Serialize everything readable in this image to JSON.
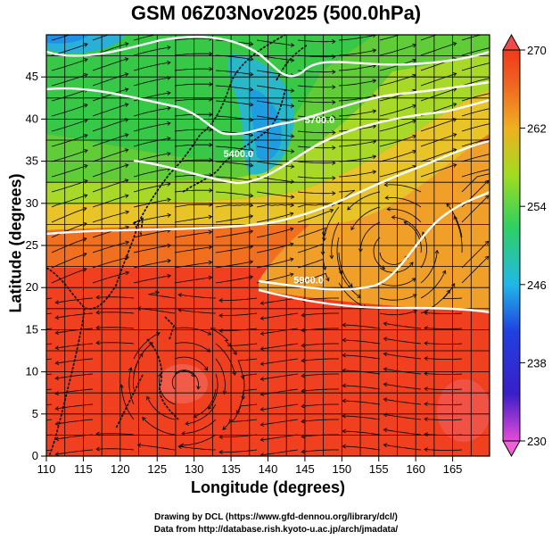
{
  "title": "GSM 06Z03Nov2025 (500.0hPa)",
  "xlabel": "Longitude (degrees)",
  "ylabel": "Latitude  (degrees)",
  "credits": [
    "Drawing by DCL (https://www.gfd-dennou.org/library/dcl/)",
    "Data from http://database.rish.kyoto-u.ac.jp/arch/jmadata/"
  ],
  "chart_data": {
    "type": "heatmap",
    "xlim": [
      110,
      170
    ],
    "ylim": [
      0,
      50
    ],
    "x_ticks": [
      110,
      115,
      120,
      125,
      130,
      135,
      140,
      145,
      150,
      155,
      160,
      165
    ],
    "y_ticks": [
      0,
      5,
      10,
      15,
      20,
      25,
      30,
      35,
      40,
      45
    ],
    "colorbar": {
      "min": 230,
      "max": 270,
      "tick_labels": [
        230,
        238,
        246,
        254,
        262,
        270
      ]
    },
    "contour_labels": [
      {
        "text": "5400.0",
        "lon": 136,
        "lat": 35.5
      },
      {
        "text": "5700.0",
        "lon": 147,
        "lat": 39.5
      },
      {
        "text": "5900.0",
        "lon": 145.5,
        "lat": 20.5
      }
    ],
    "grid": true,
    "overlay": "streamlines"
  },
  "colors": {
    "cold": "#1a2cc8",
    "cool": "#22a0e6",
    "mid": "#3ccc3c",
    "warm": "#f0a020",
    "hot": "#f03a1c"
  }
}
